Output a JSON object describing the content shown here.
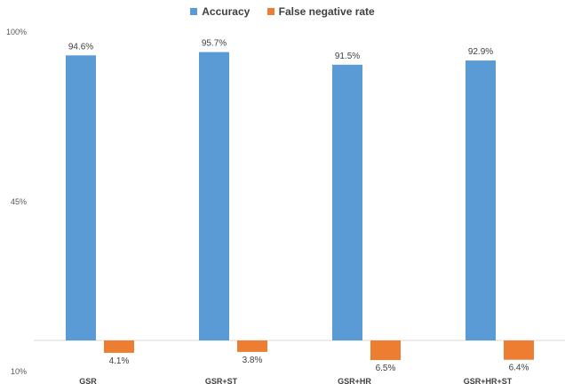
{
  "chart_data": {
    "type": "bar",
    "categories": [
      "GSR",
      "GSR+ST",
      "GSR+HR",
      "GSR+HR+ST"
    ],
    "series": [
      {
        "name": "Accuracy",
        "values": [
          94.6,
          95.7,
          91.5,
          92.9
        ],
        "labels": [
          "94.6%",
          "95.7%",
          "91.5%",
          "92.9%"
        ],
        "color": "#5B9BD5"
      },
      {
        "name": "False negative rate",
        "values": [
          4.1,
          3.8,
          6.5,
          6.4
        ],
        "labels": [
          "4.1%",
          "3.8%",
          "6.5%",
          "6.4%"
        ],
        "color": "#ED7D31"
      }
    ],
    "y_ticks": [
      "100%",
      "45%",
      "10%"
    ],
    "legend_position": "top-center",
    "grid": false,
    "title": "",
    "xlabel": "",
    "ylabel": ""
  }
}
